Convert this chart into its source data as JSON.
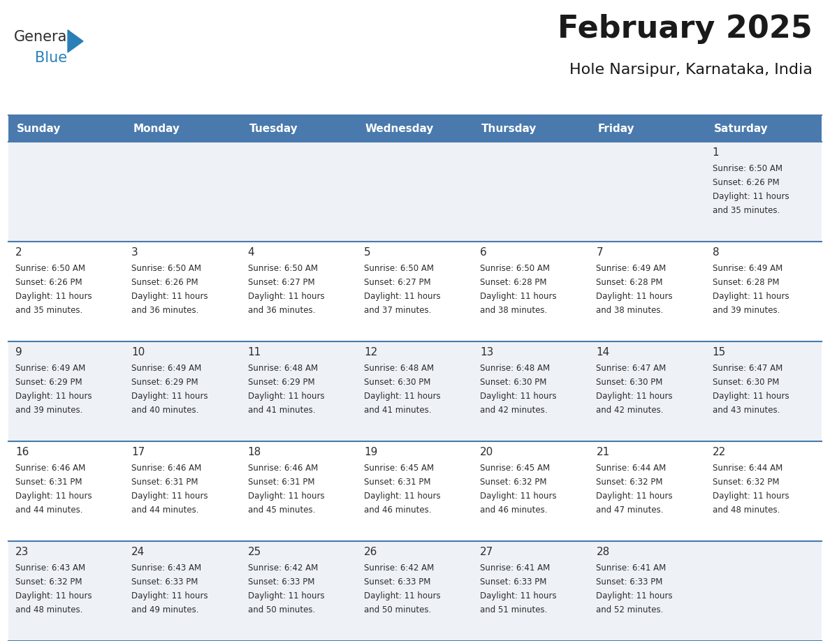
{
  "title": "February 2025",
  "subtitle": "Hole Narsipur, Karnataka, India",
  "header_color": "#4a7aad",
  "header_text_color": "#ffffff",
  "day_headers": [
    "Sunday",
    "Monday",
    "Tuesday",
    "Wednesday",
    "Thursday",
    "Friday",
    "Saturday"
  ],
  "days": [
    {
      "day": 1,
      "col": 6,
      "row": 0,
      "sunrise": "6:50 AM",
      "sunset": "6:26 PM",
      "daylight": "11 hours and 35 minutes."
    },
    {
      "day": 2,
      "col": 0,
      "row": 1,
      "sunrise": "6:50 AM",
      "sunset": "6:26 PM",
      "daylight": "11 hours and 35 minutes."
    },
    {
      "day": 3,
      "col": 1,
      "row": 1,
      "sunrise": "6:50 AM",
      "sunset": "6:26 PM",
      "daylight": "11 hours and 36 minutes."
    },
    {
      "day": 4,
      "col": 2,
      "row": 1,
      "sunrise": "6:50 AM",
      "sunset": "6:27 PM",
      "daylight": "11 hours and 36 minutes."
    },
    {
      "day": 5,
      "col": 3,
      "row": 1,
      "sunrise": "6:50 AM",
      "sunset": "6:27 PM",
      "daylight": "11 hours and 37 minutes."
    },
    {
      "day": 6,
      "col": 4,
      "row": 1,
      "sunrise": "6:50 AM",
      "sunset": "6:28 PM",
      "daylight": "11 hours and 38 minutes."
    },
    {
      "day": 7,
      "col": 5,
      "row": 1,
      "sunrise": "6:49 AM",
      "sunset": "6:28 PM",
      "daylight": "11 hours and 38 minutes."
    },
    {
      "day": 8,
      "col": 6,
      "row": 1,
      "sunrise": "6:49 AM",
      "sunset": "6:28 PM",
      "daylight": "11 hours and 39 minutes."
    },
    {
      "day": 9,
      "col": 0,
      "row": 2,
      "sunrise": "6:49 AM",
      "sunset": "6:29 PM",
      "daylight": "11 hours and 39 minutes."
    },
    {
      "day": 10,
      "col": 1,
      "row": 2,
      "sunrise": "6:49 AM",
      "sunset": "6:29 PM",
      "daylight": "11 hours and 40 minutes."
    },
    {
      "day": 11,
      "col": 2,
      "row": 2,
      "sunrise": "6:48 AM",
      "sunset": "6:29 PM",
      "daylight": "11 hours and 41 minutes."
    },
    {
      "day": 12,
      "col": 3,
      "row": 2,
      "sunrise": "6:48 AM",
      "sunset": "6:30 PM",
      "daylight": "11 hours and 41 minutes."
    },
    {
      "day": 13,
      "col": 4,
      "row": 2,
      "sunrise": "6:48 AM",
      "sunset": "6:30 PM",
      "daylight": "11 hours and 42 minutes."
    },
    {
      "day": 14,
      "col": 5,
      "row": 2,
      "sunrise": "6:47 AM",
      "sunset": "6:30 PM",
      "daylight": "11 hours and 42 minutes."
    },
    {
      "day": 15,
      "col": 6,
      "row": 2,
      "sunrise": "6:47 AM",
      "sunset": "6:30 PM",
      "daylight": "11 hours and 43 minutes."
    },
    {
      "day": 16,
      "col": 0,
      "row": 3,
      "sunrise": "6:46 AM",
      "sunset": "6:31 PM",
      "daylight": "11 hours and 44 minutes."
    },
    {
      "day": 17,
      "col": 1,
      "row": 3,
      "sunrise": "6:46 AM",
      "sunset": "6:31 PM",
      "daylight": "11 hours and 44 minutes."
    },
    {
      "day": 18,
      "col": 2,
      "row": 3,
      "sunrise": "6:46 AM",
      "sunset": "6:31 PM",
      "daylight": "11 hours and 45 minutes."
    },
    {
      "day": 19,
      "col": 3,
      "row": 3,
      "sunrise": "6:45 AM",
      "sunset": "6:31 PM",
      "daylight": "11 hours and 46 minutes."
    },
    {
      "day": 20,
      "col": 4,
      "row": 3,
      "sunrise": "6:45 AM",
      "sunset": "6:32 PM",
      "daylight": "11 hours and 46 minutes."
    },
    {
      "day": 21,
      "col": 5,
      "row": 3,
      "sunrise": "6:44 AM",
      "sunset": "6:32 PM",
      "daylight": "11 hours and 47 minutes."
    },
    {
      "day": 22,
      "col": 6,
      "row": 3,
      "sunrise": "6:44 AM",
      "sunset": "6:32 PM",
      "daylight": "11 hours and 48 minutes."
    },
    {
      "day": 23,
      "col": 0,
      "row": 4,
      "sunrise": "6:43 AM",
      "sunset": "6:32 PM",
      "daylight": "11 hours and 48 minutes."
    },
    {
      "day": 24,
      "col": 1,
      "row": 4,
      "sunrise": "6:43 AM",
      "sunset": "6:33 PM",
      "daylight": "11 hours and 49 minutes."
    },
    {
      "day": 25,
      "col": 2,
      "row": 4,
      "sunrise": "6:42 AM",
      "sunset": "6:33 PM",
      "daylight": "11 hours and 50 minutes."
    },
    {
      "day": 26,
      "col": 3,
      "row": 4,
      "sunrise": "6:42 AM",
      "sunset": "6:33 PM",
      "daylight": "11 hours and 50 minutes."
    },
    {
      "day": 27,
      "col": 4,
      "row": 4,
      "sunrise": "6:41 AM",
      "sunset": "6:33 PM",
      "daylight": "11 hours and 51 minutes."
    },
    {
      "day": 28,
      "col": 5,
      "row": 4,
      "sunrise": "6:41 AM",
      "sunset": "6:33 PM",
      "daylight": "11 hours and 52 minutes."
    }
  ],
  "num_rows": 5,
  "logo_color_general": "#2c2c2c",
  "logo_color_blue": "#2980b9",
  "logo_triangle_color": "#2980b9",
  "grid_line_color": "#4a7aad",
  "alt_row_color": "#eef2f7",
  "white_row_color": "#ffffff",
  "title_fontsize": 32,
  "subtitle_fontsize": 16,
  "header_fontsize": 11,
  "day_num_fontsize": 11,
  "cell_text_fontsize": 8.5
}
